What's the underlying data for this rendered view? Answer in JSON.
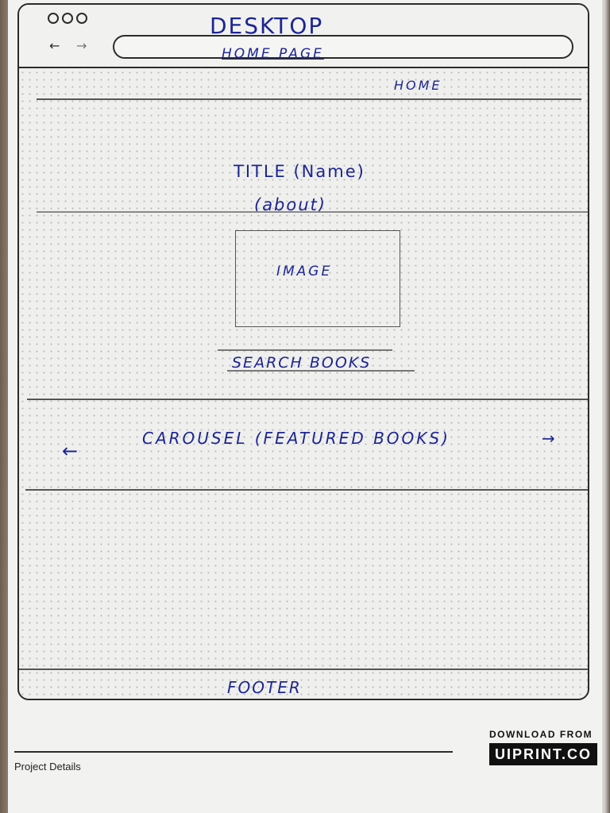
{
  "wireframe": {
    "title": "DESKTOP",
    "browser": {
      "window_dots": 3,
      "back_icon": "arrow-left-icon",
      "forward_icon": "arrow-right-icon",
      "url_text": "HOME PAGE"
    },
    "nav": {
      "home_link": "HOME"
    },
    "hero": {
      "title": "TITLE (Name)",
      "about": "(about)",
      "image_label": "IMAGE",
      "search_link": "SEARCH BOOKS"
    },
    "carousel": {
      "label": "CAROUSEL (FEATURED BOOKS)",
      "prev_arrow": "←",
      "next_arrow": "→"
    },
    "footer": {
      "label": "FOOTER"
    }
  },
  "sheet": {
    "project_details": "Project Details",
    "download_from": "DOWNLOAD FROM",
    "brand": "UIPRINT.CO"
  },
  "colors": {
    "ink": "#1c2593",
    "pencil": "#2b2b2b",
    "paper": "#f2f2f0"
  }
}
